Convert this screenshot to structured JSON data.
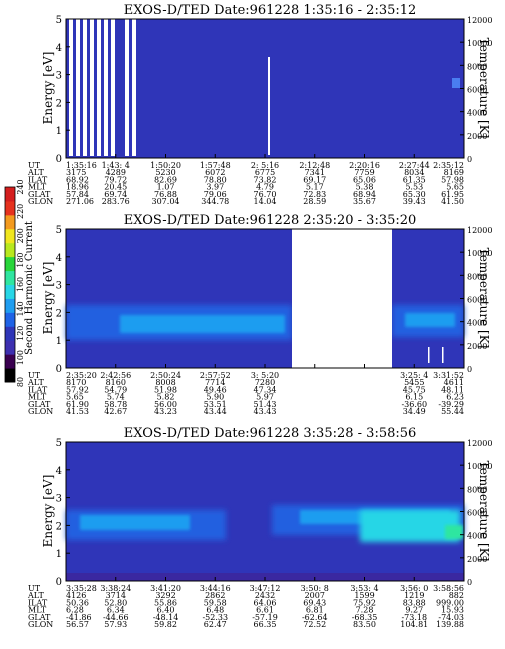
{
  "chart_data": [
    {
      "type": "heatmap",
      "title": "EXOS-D/TED   Date:961228   1:35:16 - 2:35:12",
      "ylabel": "Energy [eV]",
      "ylabel_right": "Temperature [K]",
      "ylim": [
        0,
        5
      ],
      "ylim_right": [
        0,
        12000
      ],
      "yticks": [
        "0",
        "1",
        "2",
        "3",
        "4",
        "5"
      ],
      "yticks_right": [
        "0",
        "2000",
        "4000",
        "6000",
        "8000",
        "10000",
        "12000"
      ],
      "rows": [
        {
          "label": "UT",
          "values": [
            "1:35:16",
            "1:43: 4",
            "1:50:20",
            "1:57:48",
            "2: 5:16",
            "2:12:48",
            "2:20:16",
            "2:27:44",
            "2:35:12"
          ]
        },
        {
          "label": "ALT",
          "values": [
            "3175",
            "4289",
            "5230",
            "6072",
            "6775",
            "7341",
            "7759",
            "8034",
            "8169"
          ]
        },
        {
          "label": "ILAT",
          "values": [
            "68.92",
            "79.72",
            "82.69",
            "78.80",
            "73.82",
            "69.17",
            "65.06",
            "61.35",
            "57.98"
          ]
        },
        {
          "label": "MLT",
          "values": [
            "18.96",
            "20.45",
            "1.07",
            "3.97",
            "4.79",
            "5.17",
            "5.38",
            "5.53",
            "5.65"
          ]
        },
        {
          "label": "GLAT",
          "values": [
            "57.84",
            "69.74",
            "76.88",
            "79.06",
            "76.70",
            "72.83",
            "68.94",
            "65.30",
            "61.95"
          ]
        },
        {
          "label": "GLON",
          "values": [
            "271.06",
            "283.76",
            "307.04",
            "344.78",
            "14.04",
            "28.59",
            "35.67",
            "39.43",
            "41.50"
          ]
        }
      ]
    },
    {
      "type": "heatmap",
      "title": "EXOS-D/TED   Date:961228   2:35:20 - 3:35:20",
      "ylabel": "Energy [eV]",
      "ylabel_right": "Temperature [K]",
      "ylim": [
        0,
        5
      ],
      "ylim_right": [
        0,
        12000
      ],
      "yticks": [
        "0",
        "1",
        "2",
        "3",
        "4",
        "5"
      ],
      "yticks_right": [
        "0",
        "2000",
        "4000",
        "6000",
        "8000",
        "10000",
        "12000"
      ],
      "colorbar": {
        "label": "Second Harmonic Current",
        "ticks": [
          "80",
          "100",
          "120",
          "140",
          "160",
          "180",
          "200",
          "220",
          "240"
        ]
      },
      "rows": [
        {
          "label": "UT",
          "values": [
            "2:35:20",
            "2:42:56",
            "2:50:24",
            "2:57:52",
            "3: 5:20",
            "",
            "",
            "3:25: 4",
            "3:31:52"
          ]
        },
        {
          "label": "ALT",
          "values": [
            "8170",
            "8160",
            "8008",
            "7714",
            "7280",
            "",
            "",
            "5455",
            "4611"
          ]
        },
        {
          "label": "ILAT",
          "values": [
            "57.92",
            "54.79",
            "51.98",
            "49.46",
            "47.34",
            "",
            "",
            "45.75",
            "48.11"
          ]
        },
        {
          "label": "MLT",
          "values": [
            "5.65",
            "5.74",
            "5.82",
            "5.90",
            "5.97",
            "",
            "",
            "6.15",
            "6.23"
          ]
        },
        {
          "label": "GLAT",
          "values": [
            "61.90",
            "58.78",
            "56.00",
            "53.51",
            "51.43",
            "",
            "",
            "-36.60",
            "-39.29"
          ]
        },
        {
          "label": "GLON",
          "values": [
            "41.53",
            "42.67",
            "43.23",
            "43.44",
            "43.43",
            "",
            "",
            "34.49",
            "55.44"
          ]
        }
      ]
    },
    {
      "type": "heatmap",
      "title": "EXOS-D/TED   Date:961228   3:35:28 - 3:58:56",
      "ylabel": "Energy [eV]",
      "ylabel_right": "Temperature [K]",
      "ylim": [
        0,
        5
      ],
      "ylim_right": [
        0,
        12000
      ],
      "yticks": [
        "0",
        "1",
        "2",
        "3",
        "4",
        "5"
      ],
      "yticks_right": [
        "0",
        "2000",
        "4000",
        "6000",
        "8000",
        "10000",
        "12000"
      ],
      "rows": [
        {
          "label": "UT",
          "values": [
            "3:35:28",
            "3:38:24",
            "3:41:20",
            "3:44:16",
            "3:47:12",
            "3:50: 8",
            "3:53: 4",
            "3:56: 0",
            "3:58:56"
          ]
        },
        {
          "label": "ALT",
          "values": [
            "4126",
            "3714",
            "3292",
            "2862",
            "2432",
            "2007",
            "1599",
            "1219",
            "882"
          ]
        },
        {
          "label": "ILAT",
          "values": [
            "50.36",
            "52.80",
            "55.86",
            "59.58",
            "64.06",
            "69.43",
            "75.92",
            "83.88",
            "999.00"
          ]
        },
        {
          "label": "MLT",
          "values": [
            "6.28",
            "6.34",
            "6.40",
            "6.48",
            "6.61",
            "6.81",
            "7.28",
            "9.27",
            "15.93"
          ]
        },
        {
          "label": "GLAT",
          "values": [
            "-41.86",
            "-44.66",
            "-48.14",
            "-52.33",
            "-57.19",
            "-62.64",
            "-68.35",
            "-73.18",
            "-74.03"
          ]
        },
        {
          "label": "GLON",
          "values": [
            "56.57",
            "57.93",
            "59.82",
            "62.47",
            "66.35",
            "72.52",
            "83.50",
            "104.81",
            "139.88"
          ]
        }
      ]
    }
  ],
  "colors": {
    "background": "#2f35b8",
    "gap": "#ffffff",
    "colormap": [
      "#000000",
      "#3a0050",
      "#3d2fb0",
      "#2f36b8",
      "#1f63e6",
      "#1f9df0",
      "#27d6e6",
      "#2fe6a0",
      "#28d63a",
      "#b8e81e",
      "#f0e61e",
      "#f39a1e",
      "#e6321e",
      "#d41e1e"
    ]
  }
}
